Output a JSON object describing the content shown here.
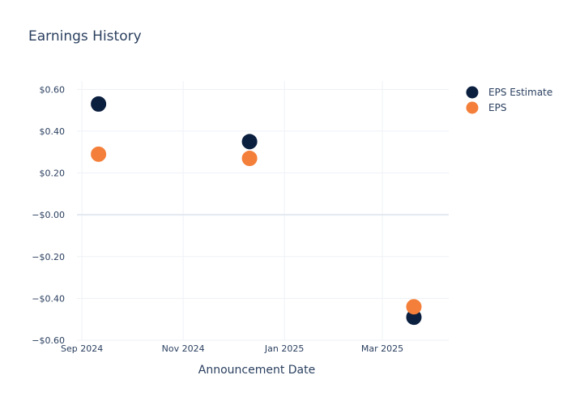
{
  "chart_data": {
    "type": "scatter",
    "title": "Earnings History",
    "xlabel": "Announcement Date",
    "ylabel": "",
    "x_ticks": [
      {
        "date": "2024-09-01",
        "label": "Sep 2024"
      },
      {
        "date": "2024-11-01",
        "label": "Nov 2024"
      },
      {
        "date": "2025-01-01",
        "label": "Jan 2025"
      },
      {
        "date": "2025-03-01",
        "label": "Mar 2025"
      }
    ],
    "xlim": [
      "2024-08-29",
      "2025-04-10"
    ],
    "y_ticks": [
      {
        "value": 0.6,
        "label": "$0.60"
      },
      {
        "value": 0.4,
        "label": "$0.40"
      },
      {
        "value": 0.2,
        "label": "$0.20"
      },
      {
        "value": 0.0,
        "label": "−$0.00"
      },
      {
        "value": -0.2,
        "label": "−$0.20"
      },
      {
        "value": -0.4,
        "label": "−$0.40"
      },
      {
        "value": -0.6,
        "label": "−$0.60"
      }
    ],
    "ylim": [
      -0.6,
      0.64
    ],
    "grid": true,
    "legend_position": "top-right",
    "series": [
      {
        "name": "EPS Estimate",
        "color": "#0b1f3f",
        "points": [
          {
            "x": "2024-09-11",
            "y": 0.53
          },
          {
            "x": "2024-12-11",
            "y": 0.35
          },
          {
            "x": "2025-03-20",
            "y": -0.49
          }
        ]
      },
      {
        "name": "EPS",
        "color": "#f47f3a",
        "points": [
          {
            "x": "2024-09-11",
            "y": 0.29
          },
          {
            "x": "2024-12-11",
            "y": 0.27
          },
          {
            "x": "2025-03-20",
            "y": -0.44
          }
        ]
      }
    ]
  }
}
